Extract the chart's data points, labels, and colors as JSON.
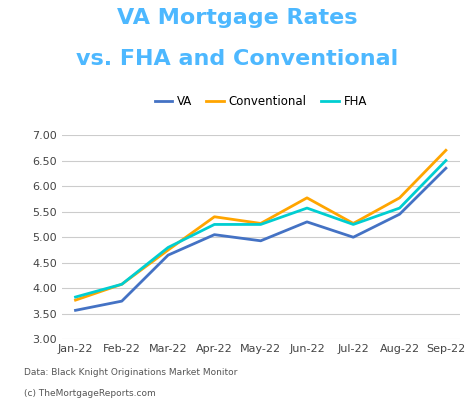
{
  "title_line1": "VA Mortgage Rates",
  "title_line2": "vs. FHA and Conventional",
  "title_color": "#4DB8FF",
  "background_color": "#ffffff",
  "months": [
    "Jan-22",
    "Feb-22",
    "Mar-22",
    "Apr-22",
    "May-22",
    "Jun-22",
    "Jul-22",
    "Aug-22",
    "Sep-22"
  ],
  "va": [
    3.57,
    3.75,
    4.65,
    5.05,
    4.93,
    5.3,
    5.0,
    5.45,
    6.35
  ],
  "conventional": [
    3.77,
    4.08,
    4.75,
    5.4,
    5.27,
    5.77,
    5.27,
    5.77,
    6.7
  ],
  "fha": [
    3.83,
    4.08,
    4.8,
    5.25,
    5.25,
    5.57,
    5.25,
    5.57,
    6.5
  ],
  "va_color": "#4472C4",
  "conventional_color": "#FFA500",
  "fha_color": "#00CED1",
  "ylim_min": 3.0,
  "ylim_max": 7.0,
  "yticks": [
    3.0,
    3.5,
    4.0,
    4.5,
    5.0,
    5.5,
    6.0,
    6.5,
    7.0
  ],
  "footer_line1": "Data: Black Knight Originations Market Monitor",
  "footer_line2": "(c) TheMortgageReports.com",
  "line_width": 2.0,
  "title_fontsize": 16,
  "legend_fontsize": 8.5,
  "tick_fontsize": 8
}
